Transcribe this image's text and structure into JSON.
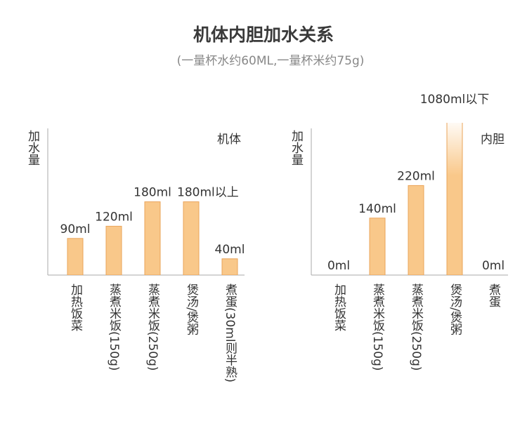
{
  "title": "机体内胆加水关系",
  "subtitle": "(一量杯水约60ML,一量杯米约75g)",
  "chart_data": [
    {
      "type": "bar",
      "label": "机体",
      "y_label": "加水量",
      "color": "#f9c88a",
      "categories": [
        "加热饭菜",
        "蒸煮米饭(150g)",
        "蒸煮米饭(250g)",
        "煲汤/煲粥",
        "煮蛋(30ml则半熟)"
      ],
      "values": [
        90,
        120,
        180,
        180,
        40
      ],
      "value_labels": [
        "90ml",
        "120ml",
        "180ml",
        "180ml以上",
        "40ml"
      ]
    },
    {
      "type": "bar",
      "label": "内胆",
      "y_label": "加水量",
      "color": "#f9c88a",
      "categories": [
        "加热饭菜",
        "蒸煮米饭(150g)",
        "蒸煮米饭(250g)",
        "煲汤/煲粥",
        "煮蛋"
      ],
      "values": [
        0,
        140,
        220,
        1080,
        0
      ],
      "value_labels": [
        "0ml",
        "140ml",
        "220ml",
        "1080ml以下",
        "0ml"
      ]
    }
  ]
}
